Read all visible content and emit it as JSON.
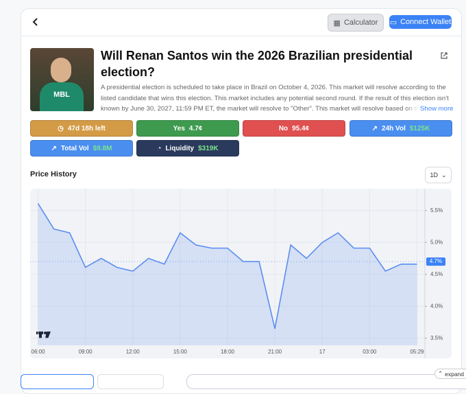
{
  "header": {
    "buttons": [
      "Calculator",
      "Connect Wallet"
    ]
  },
  "market": {
    "title": "Will Renan Santos win the 2026 Brazilian presidential election?",
    "description": "A presidential election is scheduled to take place in Brazil on October 4, 2026. This market will resolve according to the listed candidate that wins this election. This market includes any potential second round. If the result of this election isn't known by June 30, 2027, 11:59 PM ET, the market will resolve to \"Other\". This market will resolve based on the official results.",
    "show_more": "Show more"
  },
  "stats": [
    {
      "label": "47d 18h left"
    },
    {
      "label": "Yes",
      "value": "4.7¢"
    },
    {
      "label": "No",
      "value": "95.4¢"
    },
    {
      "label": "24h Vol",
      "value": "$125K"
    },
    {
      "label": "Total Vol",
      "value": "$9.8M"
    },
    {
      "label": "Liquidity",
      "value": "$319K"
    }
  ],
  "chart_data": {
    "type": "line",
    "title": "Price History",
    "timeframe": "1D",
    "color": "#5b8def",
    "x": [
      0,
      1,
      2,
      3,
      4,
      5,
      6,
      7,
      8,
      9,
      10,
      11,
      12,
      13,
      14,
      15,
      16,
      17,
      18,
      19,
      20,
      21,
      22,
      23,
      24
    ],
    "values": [
      5.61,
      5.21,
      5.15,
      4.61,
      4.75,
      4.61,
      4.55,
      4.75,
      4.66,
      5.15,
      4.96,
      4.91,
      4.91,
      4.7,
      4.7,
      3.65,
      4.96,
      4.75,
      5.0,
      5.15,
      4.91,
      4.91,
      4.55,
      4.66,
      4.66
    ],
    "xlim": [
      -0.5,
      24.5
    ],
    "xticks": [
      {
        "value": 0,
        "label": "06:00"
      },
      {
        "value": 3,
        "label": "09:00"
      },
      {
        "value": 6,
        "label": "12:00"
      },
      {
        "value": 9,
        "label": "15:00"
      },
      {
        "value": 12,
        "label": "18:00"
      },
      {
        "value": 15,
        "label": "21:00"
      },
      {
        "value": 18,
        "label": "17"
      },
      {
        "value": 21,
        "label": "03:00"
      },
      {
        "value": 24,
        "label": "05:29"
      }
    ],
    "ylim": [
      3.39,
      5.84
    ],
    "yticks": [
      {
        "value": 3.5,
        "label": "3.5%"
      },
      {
        "value": 4.0,
        "label": "4.0%"
      },
      {
        "value": 4.5,
        "label": "4.5%"
      },
      {
        "value": 5.0,
        "label": "5.0%"
      },
      {
        "value": 5.5,
        "label": "5.5%"
      }
    ],
    "current": {
      "value": 4.7,
      "label": "4.7%"
    }
  },
  "footer": {
    "expand": "expand"
  }
}
